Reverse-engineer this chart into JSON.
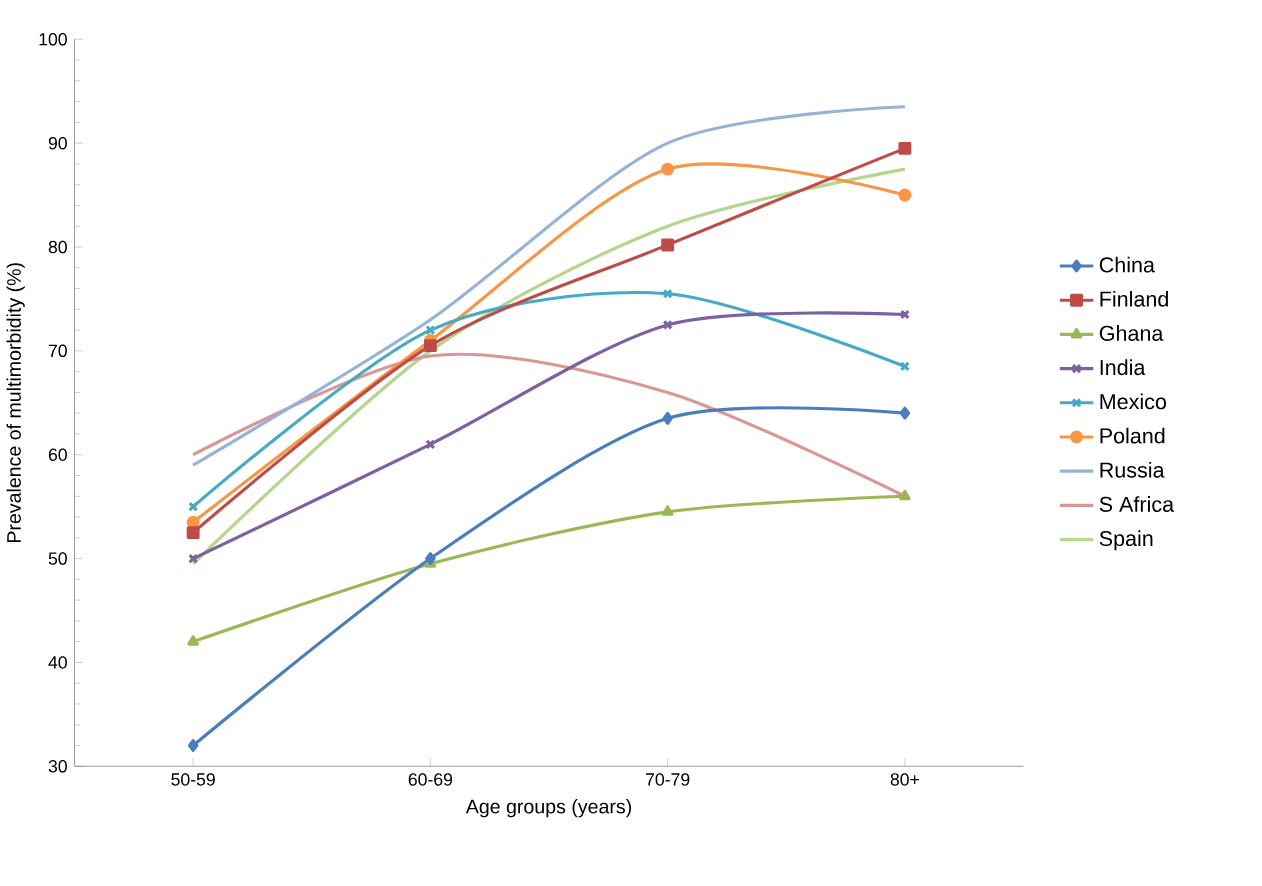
{
  "chart_data": {
    "type": "line",
    "xlabel": "Age groups (years)",
    "ylabel": "Prevalence of multimorbidity (%)",
    "categories": [
      "50-59",
      "60-69",
      "70-79",
      "80+"
    ],
    "ylim": [
      30,
      100
    ],
    "yticks": [
      30,
      40,
      50,
      60,
      70,
      80,
      90,
      100
    ],
    "legend": "right",
    "grid": false,
    "series": [
      {
        "name": "China",
        "color": "#4a7ebb",
        "marker": "diamond",
        "values": [
          32,
          50,
          63.5,
          64
        ]
      },
      {
        "name": "Finland",
        "color": "#be4b48",
        "marker": "square",
        "values": [
          52.5,
          70.5,
          80.2,
          89.5
        ]
      },
      {
        "name": "Ghana",
        "color": "#98b954",
        "marker": "triangle",
        "values": [
          42,
          49.5,
          54.5,
          56
        ]
      },
      {
        "name": "India",
        "color": "#7d60a0",
        "marker": "cross",
        "values": [
          50,
          61,
          72.5,
          73.5
        ]
      },
      {
        "name": "Mexico",
        "color": "#46aac5",
        "marker": "cross",
        "values": [
          55,
          72,
          75.5,
          68.5
        ]
      },
      {
        "name": "Poland",
        "color": "#f79646",
        "marker": "circle",
        "values": [
          53.5,
          71,
          87.5,
          85
        ]
      },
      {
        "name": "Russia",
        "color": "#95b3d7",
        "marker": "none",
        "values": [
          59,
          73,
          90,
          93.5
        ]
      },
      {
        "name": "S Africa",
        "color": "#d99694",
        "marker": "none",
        "values": [
          60,
          69.5,
          66,
          56
        ]
      },
      {
        "name": "Spain",
        "color": "#b3d58c",
        "marker": "none",
        "values": [
          49.5,
          70,
          82,
          87.5
        ]
      }
    ]
  }
}
